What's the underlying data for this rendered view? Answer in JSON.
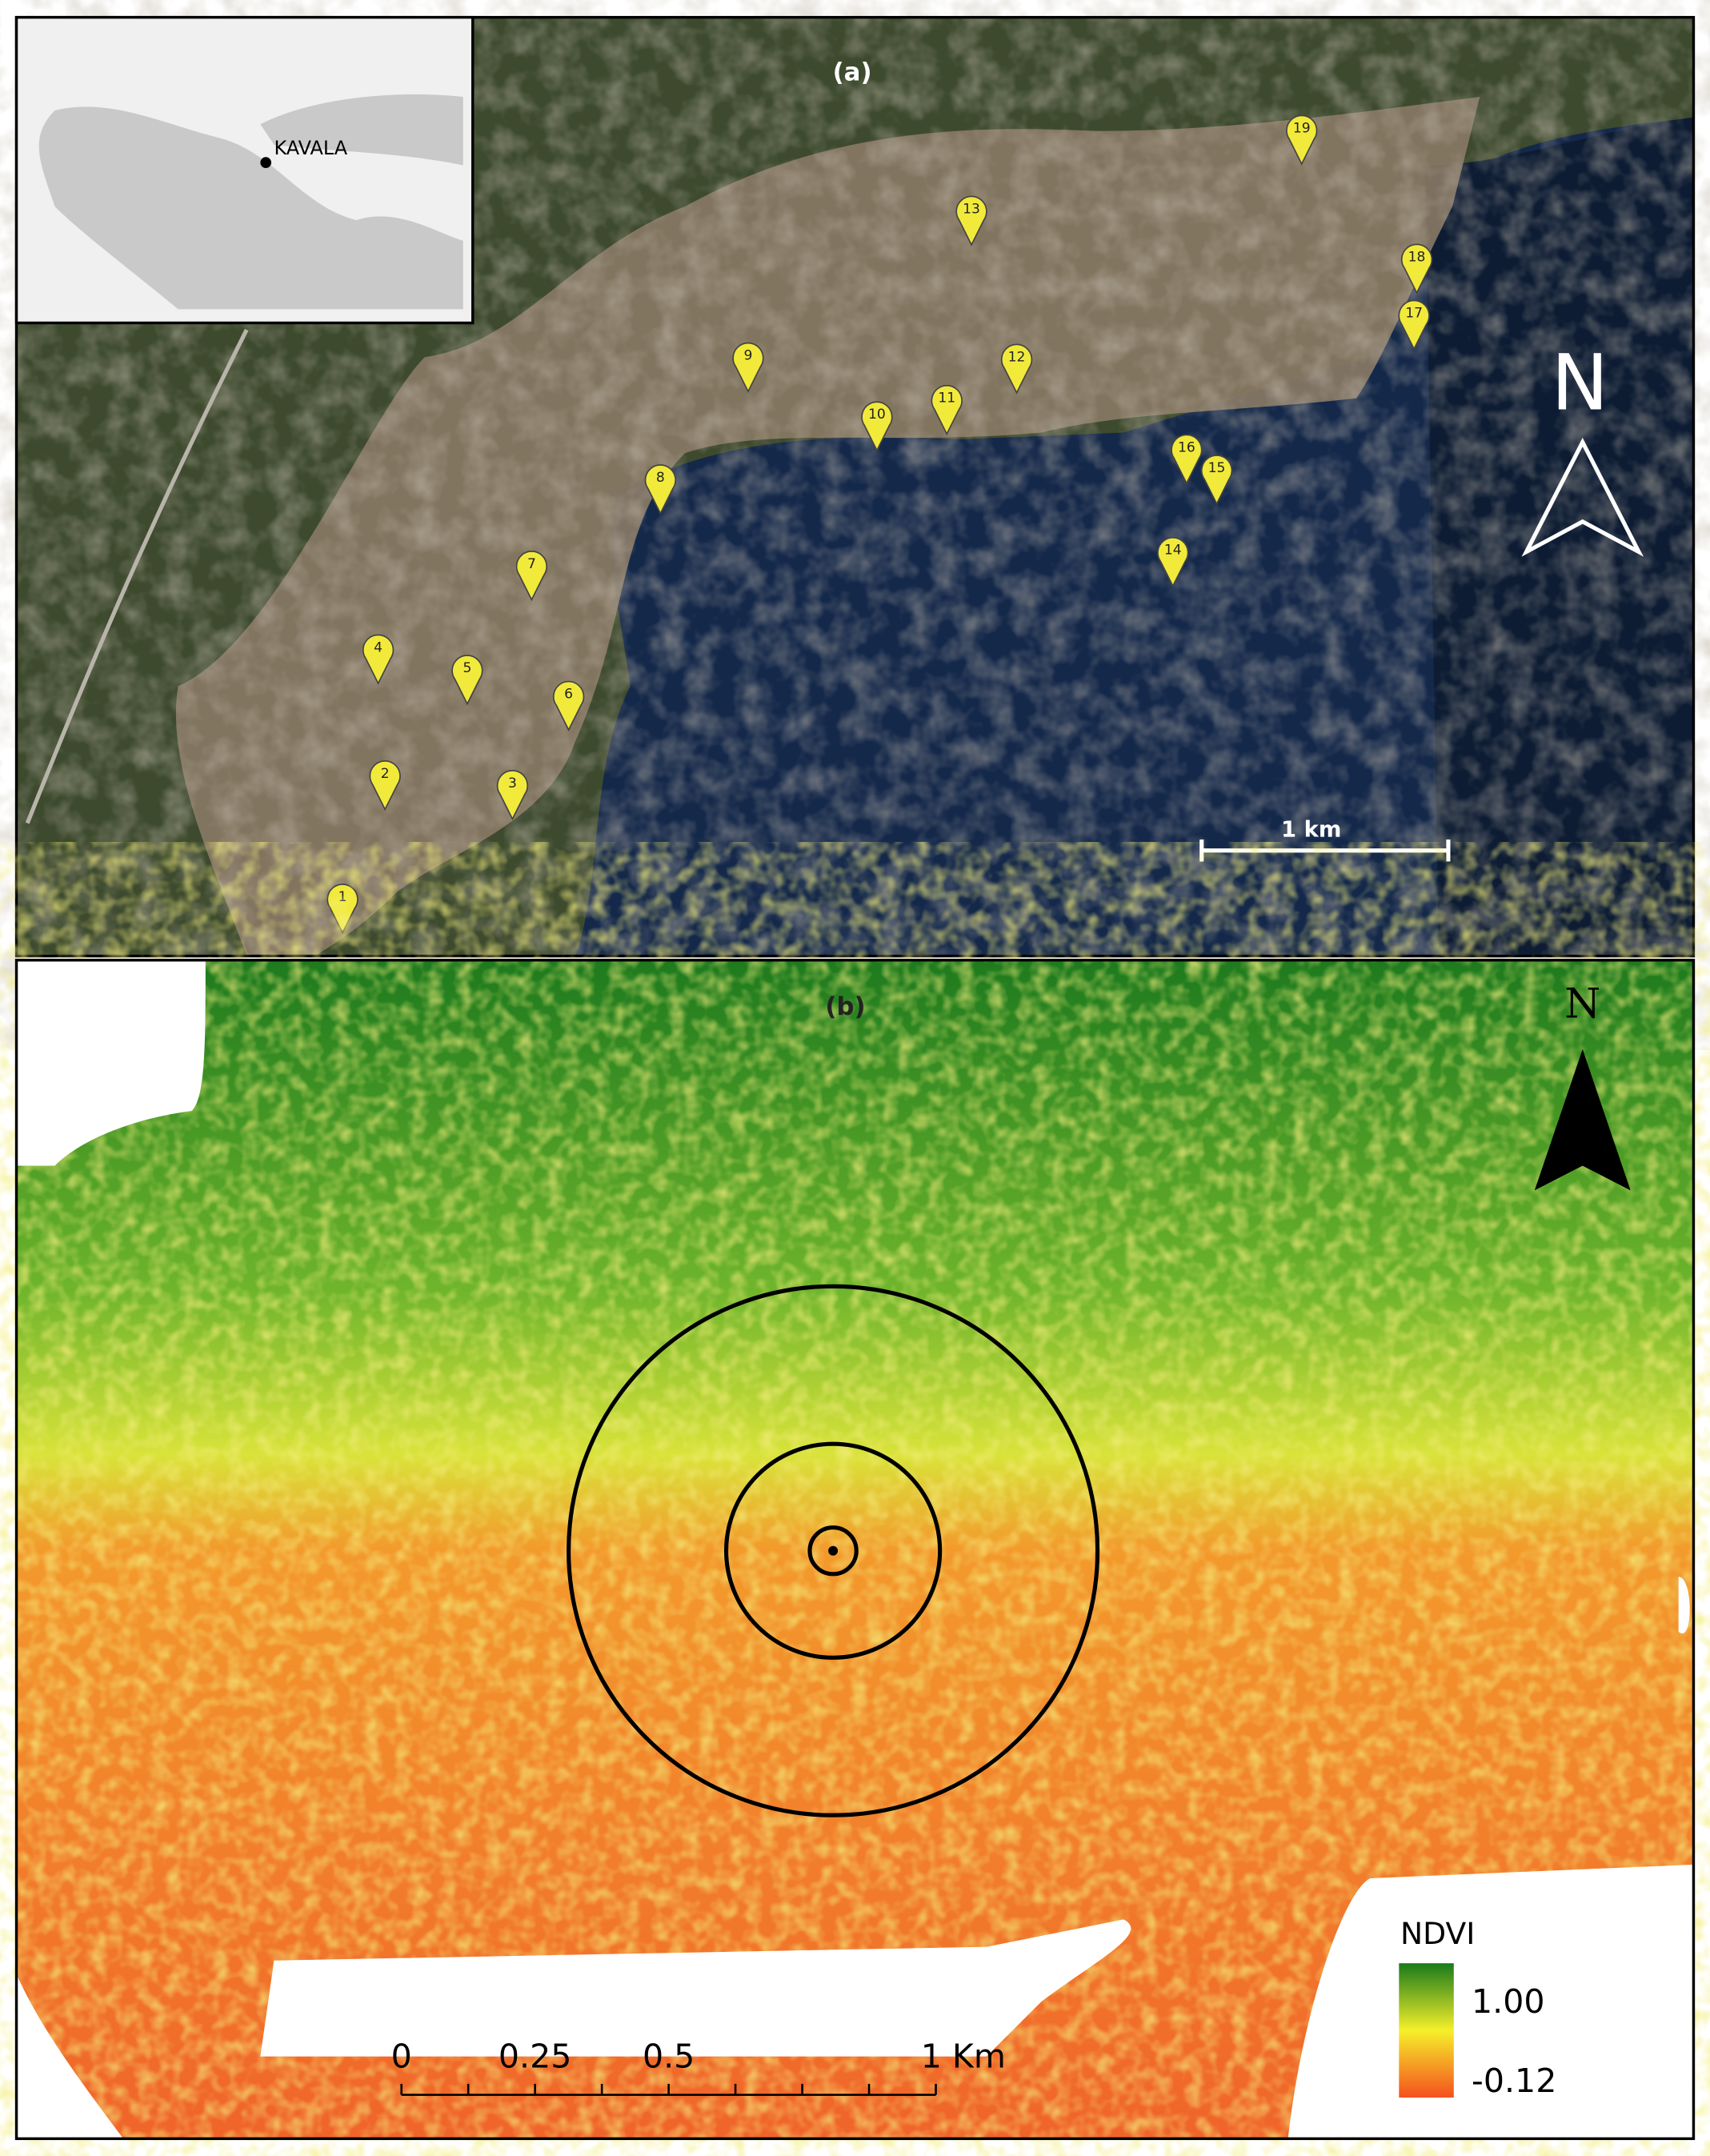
{
  "panel_a": {
    "label": "(a)",
    "inset_label": "KAVALA",
    "north": "N",
    "scale_label": "1 km",
    "markers": [
      "1",
      "2",
      "3",
      "4",
      "5",
      "6",
      "7",
      "8",
      "9",
      "10",
      "11",
      "12",
      "13",
      "14",
      "15",
      "16",
      "17",
      "18",
      "19"
    ]
  },
  "panel_b": {
    "label": "(b)",
    "north": "N",
    "legend": {
      "title": "NDVI",
      "max_label": "1.00",
      "min_label": "-0.12"
    },
    "scale_labels": [
      "0",
      "0.25",
      "0.5",
      "1 Km"
    ]
  }
}
